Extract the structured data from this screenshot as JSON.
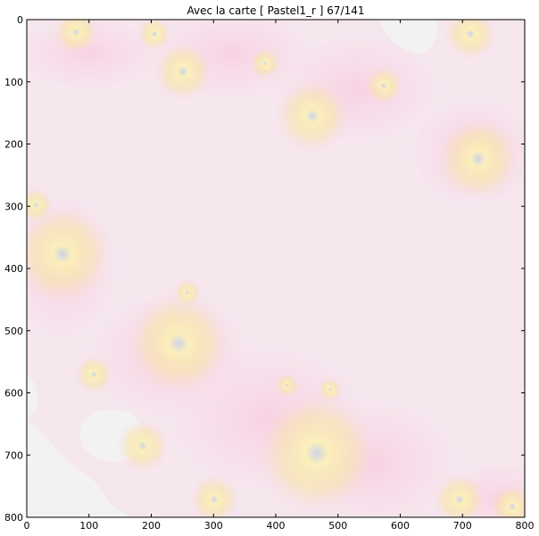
{
  "chart_data": {
    "type": "heatmap",
    "title": "Avec la carte   [ Pastel1_r ]   67/141",
    "xlabel": "",
    "ylabel": "",
    "xlim": [
      0,
      800
    ],
    "ylim": [
      800,
      0
    ],
    "x_ticks": [
      0,
      100,
      200,
      300,
      400,
      500,
      600,
      700,
      800
    ],
    "y_ticks": [
      0,
      100,
      200,
      300,
      400,
      500,
      600,
      700,
      800
    ],
    "x_tick_labels": [
      "0",
      "100",
      "200",
      "300",
      "400",
      "500",
      "600",
      "700",
      "800"
    ],
    "y_tick_labels": [
      "0",
      "100",
      "200",
      "300",
      "400",
      "500",
      "600",
      "700",
      "800"
    ],
    "colormap": "Pastel1_r",
    "grid": false,
    "colors": {
      "background_field": "#f6e6ee",
      "pink": "#f9d7e6",
      "yellow": "#fbf0b8",
      "light_grey": "#f2f2f2",
      "blue_grey": "#c9d3e6"
    }
  }
}
